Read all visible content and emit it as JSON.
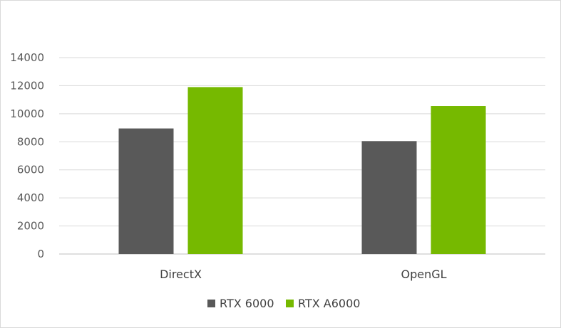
{
  "chart_data": {
    "type": "bar",
    "categories": [
      "DirectX",
      "OpenGL"
    ],
    "series": [
      {
        "name": "RTX 6000",
        "values": [
          8950,
          8050
        ],
        "color": "#595959"
      },
      {
        "name": "RTX A6000",
        "values": [
          11900,
          10550
        ],
        "color": "#76b900"
      }
    ],
    "ylim": [
      0,
      14000
    ],
    "yticks": [
      "0",
      "2000",
      "4000",
      "6000",
      "8000",
      "10000",
      "12000",
      "14000"
    ],
    "grid": true,
    "legend_position": "bottom"
  }
}
